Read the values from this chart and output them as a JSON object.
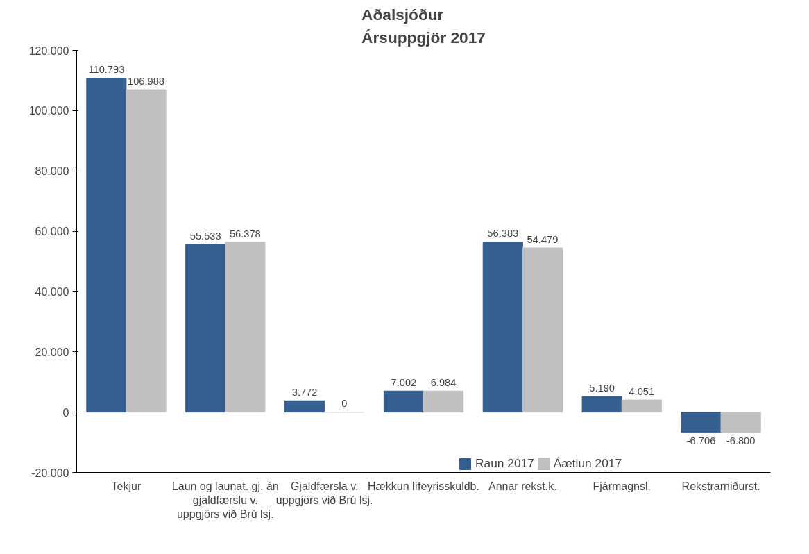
{
  "chart_data": {
    "type": "bar",
    "title": "Aðalsjóður\nÁrsuppgjör 2017",
    "categories": [
      "Tekjur",
      "Laun og launat. gj. án gjaldfærslu v. uppgjörs við Brú lsj.",
      "Gjaldfærsla v. uppgjörs við Brú lsj.",
      "Hækkun lífeyrisskuldb.",
      "Annar rekst.k.",
      "Fjármagnsl.",
      "Rekstrarniðurst."
    ],
    "series": [
      {
        "name": "Raun 2017",
        "color": "#365f91",
        "values": [
          110793,
          55533,
          3772,
          7002,
          56383,
          5190,
          -6706
        ],
        "value_labels": [
          "110.793",
          "55.533",
          "3.772",
          "7.002",
          "56.383",
          "5.190",
          "-6.706"
        ]
      },
      {
        "name": "Áætlun 2017",
        "color": "#c0c0c0",
        "values": [
          106988,
          56378,
          0,
          6984,
          54479,
          4051,
          -6800
        ],
        "value_labels": [
          "106.988",
          "56.378",
          "0",
          "6.984",
          "54.479",
          "4.051",
          "-6.800"
        ]
      }
    ],
    "ylim": [
      -20000,
      120000
    ],
    "yticks": [
      {
        "value": -20000,
        "label": "-20.000"
      },
      {
        "value": 0,
        "label": "0"
      },
      {
        "value": 20000,
        "label": "20.000"
      },
      {
        "value": 40000,
        "label": "40.000"
      },
      {
        "value": 60000,
        "label": "60.000"
      },
      {
        "value": 80000,
        "label": "80.000"
      },
      {
        "value": 100000,
        "label": "100.000"
      },
      {
        "value": 120000,
        "label": "120.000"
      }
    ],
    "grid": false,
    "legend": "bottom right"
  }
}
